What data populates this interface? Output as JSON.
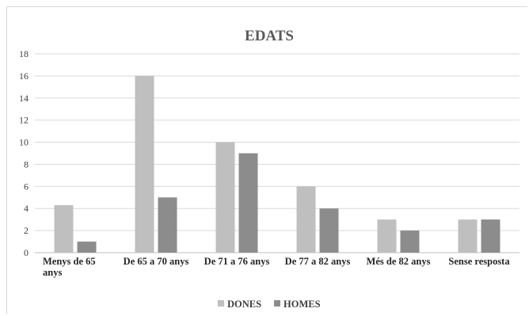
{
  "chart_data": {
    "type": "bar",
    "title": "EDATS",
    "xlabel": "",
    "ylabel": "",
    "ylim": [
      0,
      18
    ],
    "yticks": [
      0,
      2,
      4,
      6,
      8,
      10,
      12,
      14,
      16,
      18
    ],
    "grid": true,
    "legend_position": "bottom",
    "categories": [
      [
        "Menys de 65",
        "anys"
      ],
      [
        "De 65 a 70 anys"
      ],
      [
        "De 71 a 76 anys"
      ],
      [
        "De 77 a 82 anys"
      ],
      [
        "Més de 82 anys"
      ],
      [
        "Sense resposta"
      ]
    ],
    "series": [
      {
        "name": "DONES",
        "color": "#bfbfbf",
        "values": [
          4.3,
          16,
          10,
          6,
          3,
          3
        ]
      },
      {
        "name": "HOMES",
        "color": "#8c8c8c",
        "values": [
          1,
          5,
          9,
          4,
          2,
          3
        ]
      }
    ]
  }
}
